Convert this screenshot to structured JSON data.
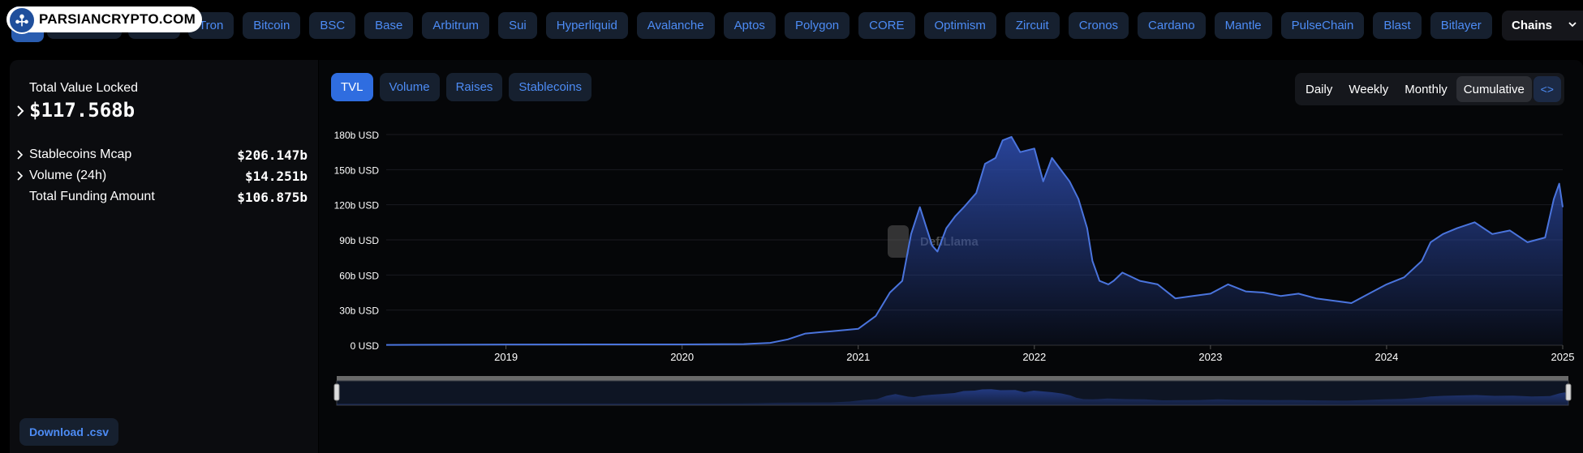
{
  "topbar": {
    "logo_text": "PARSIANCRYPTO.COM",
    "chains": [
      "Tron",
      "Bitcoin",
      "BSC",
      "Base",
      "Arbitrum",
      "Sui",
      "Hyperliquid",
      "Avalanche",
      "Aptos",
      "Polygon",
      "CORE",
      "Optimism",
      "Zircuit",
      "Cronos",
      "Cardano",
      "Mantle",
      "PulseChain",
      "Blast",
      "Bitlayer"
    ],
    "chains_button": "Chains"
  },
  "summary": {
    "tvl_label": "Total Value Locked",
    "tvl_value": "$117.568b",
    "rows": [
      {
        "label": "Stablecoins Mcap",
        "value": "$206.147b",
        "expandable": true
      },
      {
        "label": "Volume (24h)",
        "value": "$14.251b",
        "expandable": true
      },
      {
        "label": "Total Funding Amount",
        "value": "$106.875b",
        "expandable": false
      }
    ],
    "download_label": "Download .csv"
  },
  "chart_controls": {
    "tabs": [
      {
        "label": "TVL",
        "active": true
      },
      {
        "label": "Volume",
        "active": false
      },
      {
        "label": "Raises",
        "active": false
      },
      {
        "label": "Stablecoins",
        "active": false
      }
    ],
    "periods": [
      {
        "label": "Daily",
        "active": false
      },
      {
        "label": "Weekly",
        "active": false
      },
      {
        "label": "Monthly",
        "active": false
      },
      {
        "label": "Cumulative",
        "active": true
      }
    ],
    "embed_icon": "<>"
  },
  "colors": {
    "accent": "#4d8cf5",
    "line": "#4a74dd",
    "area_top": "#2c4aa8",
    "background": "#000000"
  },
  "chart_data": {
    "type": "area",
    "title": "",
    "xlabel": "",
    "ylabel": "",
    "y_unit": "USD",
    "ylim": [
      0,
      180
    ],
    "yticks": [
      "0 USD",
      "30b USD",
      "60b USD",
      "90b USD",
      "120b USD",
      "150b USD",
      "180b USD"
    ],
    "xticks": [
      "2019",
      "2020",
      "2021",
      "2022",
      "2023",
      "2024",
      "2025"
    ],
    "xlim": [
      2018.32,
      2025.0
    ],
    "grid": true,
    "watermark": "DefiLlama",
    "series": [
      {
        "values_unit": "billions USD",
        "x": [
          2018.32,
          2019.0,
          2019.5,
          2020.0,
          2020.35,
          2020.5,
          2020.6,
          2020.7,
          2020.85,
          2021.0,
          2021.1,
          2021.18,
          2021.25,
          2021.3,
          2021.35,
          2021.42,
          2021.45,
          2021.5,
          2021.55,
          2021.6,
          2021.67,
          2021.72,
          2021.78,
          2021.82,
          2021.87,
          2021.92,
          2022.0,
          2022.05,
          2022.1,
          2022.2,
          2022.25,
          2022.3,
          2022.33,
          2022.37,
          2022.42,
          2022.45,
          2022.5,
          2022.6,
          2022.7,
          2022.8,
          2022.9,
          2023.0,
          2023.1,
          2023.2,
          2023.3,
          2023.4,
          2023.5,
          2023.6,
          2023.7,
          2023.8,
          2023.9,
          2024.0,
          2024.1,
          2024.2,
          2024.25,
          2024.32,
          2024.4,
          2024.5,
          2024.6,
          2024.7,
          2024.8,
          2024.9,
          2024.95,
          2024.98,
          2025.0
        ],
        "values": [
          0.3,
          0.6,
          0.7,
          0.7,
          1,
          2,
          5,
          10,
          12,
          14,
          25,
          45,
          55,
          95,
          118,
          85,
          80,
          100,
          110,
          118,
          130,
          155,
          160,
          175,
          178,
          165,
          168,
          140,
          160,
          140,
          125,
          100,
          72,
          55,
          52,
          55,
          62,
          55,
          52,
          40,
          42,
          44,
          52,
          46,
          45,
          42,
          44,
          40,
          38,
          36,
          44,
          52,
          58,
          72,
          88,
          95,
          100,
          105,
          95,
          98,
          88,
          92,
          125,
          138,
          118
        ]
      }
    ]
  }
}
